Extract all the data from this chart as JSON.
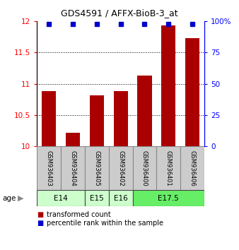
{
  "title": "GDS4591 / AFFX-BioB-3_at",
  "samples": [
    "GSM936403",
    "GSM936404",
    "GSM936405",
    "GSM936402",
    "GSM936400",
    "GSM936401",
    "GSM936406"
  ],
  "transformed_count": [
    10.88,
    10.22,
    10.82,
    10.88,
    11.13,
    11.93,
    11.73
  ],
  "percentile_rank": [
    99,
    99,
    99,
    99,
    99,
    99,
    99
  ],
  "ylim_left": [
    10.0,
    12.0
  ],
  "ylim_right": [
    0,
    100
  ],
  "yticks_left": [
    10.0,
    10.5,
    11.0,
    11.5,
    12.0
  ],
  "yticks_right": [
    0,
    25,
    50,
    75,
    100
  ],
  "ytick_labels_right": [
    "0",
    "25",
    "50",
    "75",
    "100%"
  ],
  "bar_color": "#aa0000",
  "dot_color": "#0000cc",
  "age_groups": [
    {
      "label": "E14",
      "samples": [
        "GSM936403",
        "GSM936404"
      ],
      "color": "#ccffcc"
    },
    {
      "label": "E15",
      "samples": [
        "GSM936405"
      ],
      "color": "#ccffcc"
    },
    {
      "label": "E16",
      "samples": [
        "GSM936402"
      ],
      "color": "#ccffcc"
    },
    {
      "label": "E17.5",
      "samples": [
        "GSM936400",
        "GSM936401",
        "GSM936406"
      ],
      "color": "#66ee66"
    }
  ],
  "sample_box_color": "#cccccc",
  "grid_ticks": [
    10.5,
    11.0,
    11.5
  ],
  "legend_items": [
    {
      "color": "#aa0000",
      "label": "transformed count"
    },
    {
      "color": "#0000cc",
      "label": "percentile rank within the sample"
    }
  ]
}
